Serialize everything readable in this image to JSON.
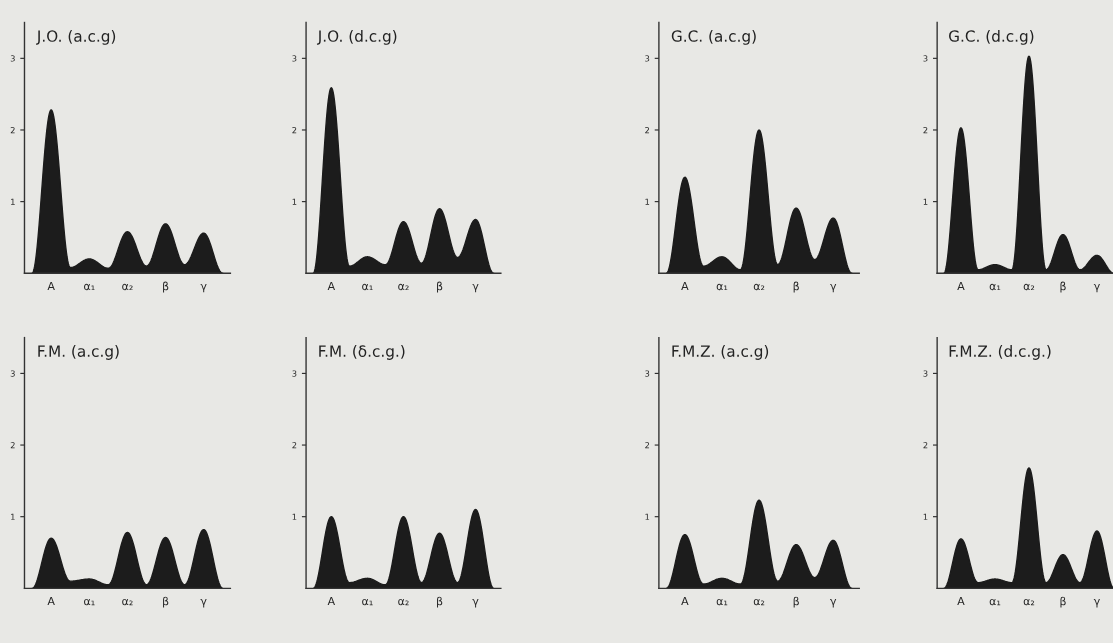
{
  "chart_data": [
    {
      "type": "area",
      "title": "J.O. (a.c.g)",
      "categories": [
        null,
        "A",
        null,
        "α₁",
        null,
        "α₂",
        null,
        "β",
        null,
        "γ",
        null
      ],
      "values": [
        0,
        2.28,
        0.08,
        0.2,
        0.07,
        0.58,
        0.1,
        0.69,
        0.12,
        0.56,
        0
      ],
      "color": "#1c1c1c",
      "ylim": [
        0,
        3.5
      ],
      "yticks": [
        1,
        2,
        3
      ],
      "grid": false
    },
    {
      "type": "area",
      "title": "J.O. (d.c.g)",
      "categories": [
        null,
        "A",
        null,
        "α₁",
        null,
        "α₂",
        null,
        "β",
        null,
        "γ",
        null
      ],
      "values": [
        0,
        2.59,
        0.1,
        0.23,
        0.12,
        0.72,
        0.14,
        0.9,
        0.22,
        0.75,
        0
      ],
      "color": "#1c1c1c",
      "ylim": [
        0,
        3.5
      ],
      "yticks": [
        1,
        2,
        3
      ],
      "grid": false
    },
    {
      "type": "area",
      "title": "G.C. (a.c.g)",
      "categories": [
        null,
        "A",
        null,
        "α₁",
        null,
        "α₂",
        null,
        "β",
        null,
        "γ",
        null
      ],
      "values": [
        0,
        1.34,
        0.1,
        0.23,
        0.05,
        2.0,
        0.12,
        0.91,
        0.19,
        0.77,
        0
      ],
      "color": "#1c1c1c",
      "ylim": [
        0,
        3.5
      ],
      "yticks": [
        1,
        2,
        3
      ],
      "grid": false
    },
    {
      "type": "area",
      "title": "G.C. (d.c.g)",
      "categories": [
        null,
        "A",
        null,
        "α₁",
        null,
        "α₂",
        null,
        "β",
        null,
        "γ",
        null
      ],
      "values": [
        0,
        2.03,
        0.05,
        0.12,
        0.05,
        3.03,
        0.05,
        0.54,
        0.05,
        0.25,
        0
      ],
      "color": "#1c1c1c",
      "ylim": [
        0,
        3.5
      ],
      "yticks": [
        1,
        2,
        3
      ],
      "grid": false
    },
    {
      "type": "area",
      "title": "F.M. (a.c.g)",
      "categories": [
        null,
        "A",
        null,
        "α₁",
        null,
        "α₂",
        null,
        "β",
        null,
        "γ",
        null
      ],
      "values": [
        0,
        0.7,
        0.1,
        0.13,
        0.05,
        0.78,
        0.05,
        0.71,
        0.05,
        0.82,
        0
      ],
      "color": "#1c1c1c",
      "ylim": [
        0,
        3.5
      ],
      "yticks": [
        1,
        2,
        3
      ],
      "grid": false
    },
    {
      "type": "area",
      "title": "F.M. (δ.c.g.)",
      "categories": [
        null,
        "A",
        null,
        "α₁",
        null,
        "α₂",
        null,
        "β",
        null,
        "γ",
        null
      ],
      "values": [
        0,
        1.0,
        0.08,
        0.14,
        0.05,
        1.0,
        0.08,
        0.77,
        0.08,
        1.1,
        0
      ],
      "color": "#1c1c1c",
      "ylim": [
        0,
        3.5
      ],
      "yticks": [
        1,
        2,
        3
      ],
      "grid": false
    },
    {
      "type": "area",
      "title": "F.M.Z. (a.c.g)",
      "categories": [
        null,
        "A",
        null,
        "α₁",
        null,
        "α₂",
        null,
        "β",
        null,
        "γ",
        null
      ],
      "values": [
        0,
        0.75,
        0.06,
        0.14,
        0.06,
        1.23,
        0.1,
        0.61,
        0.15,
        0.67,
        0
      ],
      "color": "#1c1c1c",
      "ylim": [
        0,
        3.5
      ],
      "yticks": [
        1,
        2,
        3
      ],
      "grid": false
    },
    {
      "type": "area",
      "title": "F.M.Z. (d.c.g.)",
      "categories": [
        null,
        "A",
        null,
        "α₁",
        null,
        "α₂",
        null,
        "β",
        null,
        "γ",
        null
      ],
      "values": [
        0,
        0.69,
        0.08,
        0.13,
        0.08,
        1.68,
        0.08,
        0.47,
        0.08,
        0.8,
        0
      ],
      "color": "#1c1c1c",
      "ylim": [
        0,
        3.5
      ],
      "yticks": [
        1,
        2,
        3
      ],
      "grid": false
    }
  ]
}
